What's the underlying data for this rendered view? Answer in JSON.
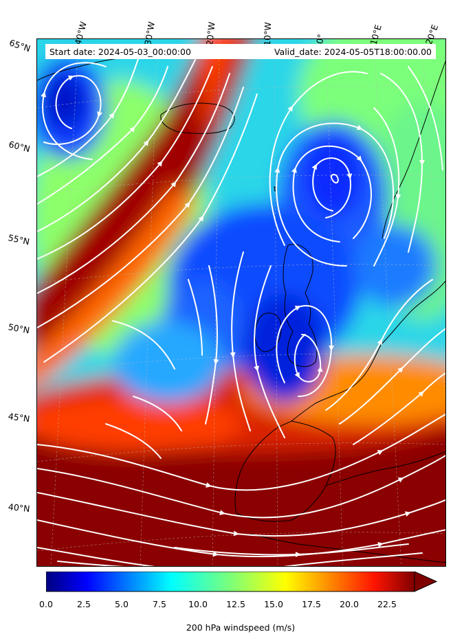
{
  "info": {
    "start_date": "Start date: 2024-05-03_00:00:00",
    "valid_date": "Valid_date: 2024-05-05T18:00:00.00"
  },
  "longitude_labels": [
    "40°W",
    "30°W",
    "20°W",
    "10°W",
    "0°",
    "10°E",
    "20°E"
  ],
  "latitude_labels": [
    "65°N",
    "60°N",
    "55°N",
    "50°N",
    "45°N",
    "40°N"
  ],
  "colorbar": {
    "label": "200 hPa windspeed (m/s)",
    "ticks": [
      "0.0",
      "2.5",
      "5.0",
      "7.5",
      "10.0",
      "12.5",
      "15.0",
      "17.5",
      "20.0",
      "22.5"
    ],
    "min": 0,
    "max": 25,
    "extend": "max",
    "colormap": "jet"
  },
  "map": {
    "projection": "conic",
    "field": "200 hPa windspeed",
    "overlay": "streamlines",
    "streamline_color": "#ffffff",
    "coastline_color": "#000000",
    "gridlines": "dashed"
  }
}
